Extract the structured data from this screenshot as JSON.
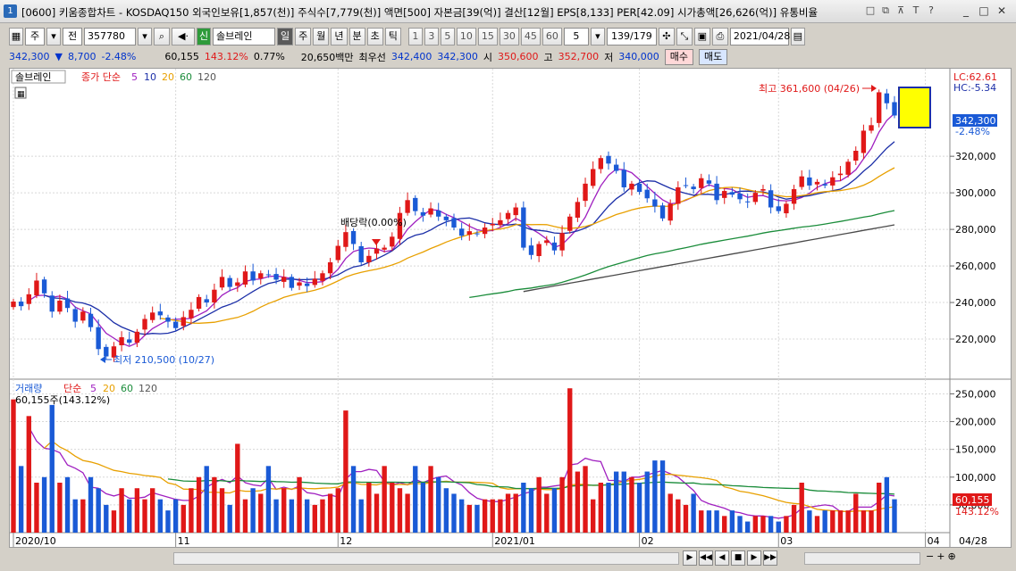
{
  "window": {
    "title": "[0600] 키움종합차트 - KOSDAQ150 외국인보유[1,857(천)] 주식수[7,779(천)] 액면[500] 자본금[39(억)] 결산[12월] EPS[8,133] PER[42.09] 시가총액[26,626(억)] 유통비율",
    "app_icon": "1"
  },
  "toolbar": {
    "period_unit": "주",
    "prev_label": "전",
    "code": "357780",
    "stock_name": "솔브레인",
    "badge_new": "신",
    "tabs": [
      "일",
      "주",
      "월",
      "년",
      "분",
      "초",
      "틱"
    ],
    "intervals": [
      "1",
      "3",
      "5",
      "10",
      "15",
      "30",
      "45",
      "60"
    ],
    "count_select": "5",
    "page_count": "139/179",
    "date": "2021/04/28"
  },
  "info": {
    "price": "342,300",
    "change": "8,700",
    "change_pct": "-2.48%",
    "volume": "60,155",
    "volume_pct": "143.12%",
    "turnover": "0.77%",
    "amount": "20,650백만",
    "ask_label": "최우선",
    "ask1": "342,400",
    "ask2": "342,300",
    "open_label": "시",
    "open": "350,600",
    "high_label": "고",
    "high": "352,700",
    "low_label": "저",
    "low": "340,000",
    "buy_label": "매수",
    "sell_label": "매도"
  },
  "colors": {
    "up": "#e01818",
    "down": "#1a5ad6",
    "ma5": "#a020c0",
    "ma10": "#1c2fa8",
    "ma20": "#e8a000",
    "ma60": "#1a8c3a",
    "ma120": "#4a4a4a"
  },
  "price_panel": {
    "legend_name": "솔브레인",
    "legend_type": "종가 단순",
    "legend_periods": [
      "5",
      "10",
      "20",
      "60",
      "120"
    ],
    "lc_label": "LC:62.61",
    "hc_label": "HC:-5.34",
    "current_price_tag": "342,300",
    "current_pct_tag": "-2.48%",
    "high_annotation": "최고 361,600 (04/26)",
    "low_annotation": "최저 210,500 (10/27)",
    "dividend_annotation": "배당락(0.00%)",
    "y_ticks": [
      "320,000",
      "300,000",
      "280,000",
      "260,000",
      "240,000",
      "220,000"
    ],
    "y_tick_values": [
      320000,
      300000,
      280000,
      260000,
      240000,
      220000
    ]
  },
  "volume_panel": {
    "legend_name": "거래량",
    "legend_type": "단순",
    "legend_periods": [
      "5",
      "20",
      "60",
      "120"
    ],
    "volume_readout": "60,155주(143.12%)",
    "current_tag": "60,155",
    "current_pct_tag": "143.12%",
    "y_ticks": [
      "250,000",
      "200,000",
      "150,000",
      "100,000",
      "50,000"
    ],
    "y_tick_values": [
      250000,
      200000,
      150000,
      100000,
      50000
    ]
  },
  "x_axis": {
    "labels": [
      "2020/10",
      "11",
      "12",
      "2021/01",
      "02",
      "03",
      "04",
      "04/28"
    ]
  },
  "chart_data": {
    "type": "candlestick",
    "price_min": 200000,
    "price_max": 364000,
    "vol_max": 270000,
    "closes": [
      240500,
      238000,
      244500,
      252000,
      245000,
      235000,
      241000,
      237000,
      229500,
      235000,
      226500,
      214500,
      210500,
      216000,
      221000,
      218000,
      224000,
      231000,
      234500,
      233000,
      229500,
      226000,
      232000,
      236000,
      243000,
      240000,
      247000,
      254000,
      248500,
      251000,
      257000,
      252000,
      256000,
      255000,
      252500,
      254000,
      248000,
      251000,
      249000,
      253000,
      256000,
      262000,
      271000,
      278500,
      272000,
      262000,
      265500,
      269500,
      270000,
      276000,
      289000,
      296000,
      290000,
      287500,
      291500,
      287000,
      285000,
      281000,
      276500,
      279000,
      277500,
      281000,
      283000,
      285000,
      289000,
      292000,
      270000,
      266000,
      272000,
      274000,
      268500,
      278000,
      287000,
      295000,
      305000,
      313000,
      319000,
      316000,
      312000,
      303000,
      305000,
      300500,
      297000,
      292500,
      286000,
      294000,
      303000,
      304000,
      302000,
      308000,
      305000,
      296000,
      301000,
      299000,
      296500,
      295000,
      300000,
      302000,
      292000,
      290000,
      294000,
      302000,
      309000,
      304000,
      306000,
      304000,
      308500,
      310500,
      317000,
      323000,
      334000,
      337000,
      355000,
      349000,
      342300
    ],
    "volumes": [
      240000,
      120000,
      210000,
      90000,
      100000,
      230000,
      90000,
      100000,
      60000,
      60000,
      100000,
      80000,
      50000,
      40000,
      80000,
      60000,
      80000,
      60000,
      80000,
      60000,
      40000,
      60000,
      50000,
      80000,
      100000,
      120000,
      100000,
      80000,
      50000,
      160000,
      60000,
      80000,
      70000,
      120000,
      60000,
      80000,
      60000,
      100000,
      60000,
      50000,
      60000,
      70000,
      80000,
      220000,
      120000,
      60000,
      90000,
      70000,
      120000,
      90000,
      80000,
      70000,
      120000,
      90000,
      120000,
      100000,
      80000,
      70000,
      60000,
      50000,
      50000,
      60000,
      60000,
      60000,
      70000,
      70000,
      90000,
      80000,
      100000,
      70000,
      80000,
      100000,
      260000,
      110000,
      120000,
      60000,
      90000,
      90000,
      110000,
      110000,
      100000,
      90000,
      110000,
      130000,
      130000,
      70000,
      60000,
      50000,
      70000,
      40000,
      40000,
      40000,
      30000,
      40000,
      30000,
      20000,
      30000,
      30000,
      30000,
      20000,
      30000,
      50000,
      90000,
      40000,
      30000,
      40000,
      40000,
      40000,
      40000,
      70000,
      40000,
      40000,
      90000,
      100000,
      60155
    ],
    "high_value": 361600,
    "low_value": 210500
  }
}
